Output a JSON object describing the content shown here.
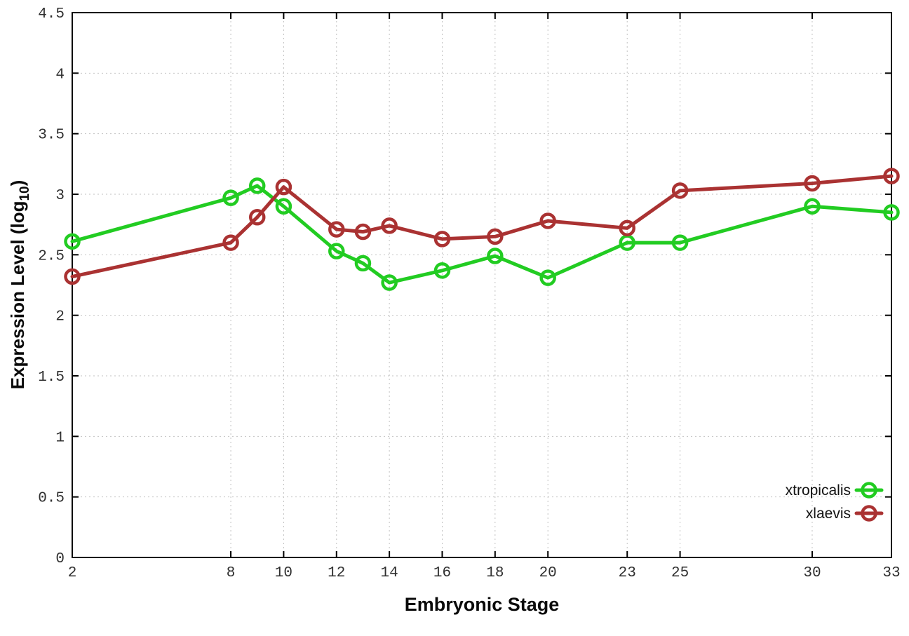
{
  "chart_data": {
    "type": "line",
    "title": "",
    "xlabel": "Embryonic Stage",
    "ylabel_prefix": "Expression Level (log",
    "ylabel_subscript": "10",
    "ylabel_suffix": ")",
    "xlim": [
      2,
      33
    ],
    "ylim": [
      0,
      4.5
    ],
    "grid": true,
    "grid_style": "dotted",
    "legend_position": "inside-bottom-right",
    "x": [
      2,
      8,
      9,
      10,
      12,
      13,
      14,
      16,
      18,
      20,
      23,
      25,
      30,
      33
    ],
    "xticks": [
      2,
      8,
      10,
      12,
      14,
      16,
      18,
      20,
      23,
      25,
      30,
      33
    ],
    "xtick_labels": [
      "2",
      "8",
      "10",
      "12",
      "14",
      "16",
      "18",
      "20",
      "23",
      "25",
      "30",
      "33"
    ],
    "yticks": [
      0,
      0.5,
      1,
      1.5,
      2,
      2.5,
      3,
      3.5,
      4,
      4.5
    ],
    "ytick_labels": [
      "0",
      "0.5",
      "1",
      "1.5",
      "2",
      "2.5",
      "3",
      "3.5",
      "4",
      "4.5"
    ],
    "series": [
      {
        "name": "xtropicalis",
        "color": "#22cc22",
        "marker": "open-circle",
        "values": [
          2.61,
          2.97,
          3.07,
          2.9,
          2.53,
          2.43,
          2.27,
          2.37,
          2.49,
          2.31,
          2.6,
          2.6,
          2.9,
          2.85
        ]
      },
      {
        "name": "xlaevis",
        "color": "#aa3232",
        "marker": "open-circle",
        "values": [
          2.32,
          2.6,
          2.81,
          3.06,
          2.71,
          2.69,
          2.74,
          2.63,
          2.65,
          2.78,
          2.72,
          3.03,
          3.09,
          3.15
        ]
      }
    ]
  },
  "style": {
    "background": "#ffffff",
    "grid_color": "#c2c2c2",
    "axis_color": "#000000",
    "tick_label_color": "#2f2f2f"
  }
}
